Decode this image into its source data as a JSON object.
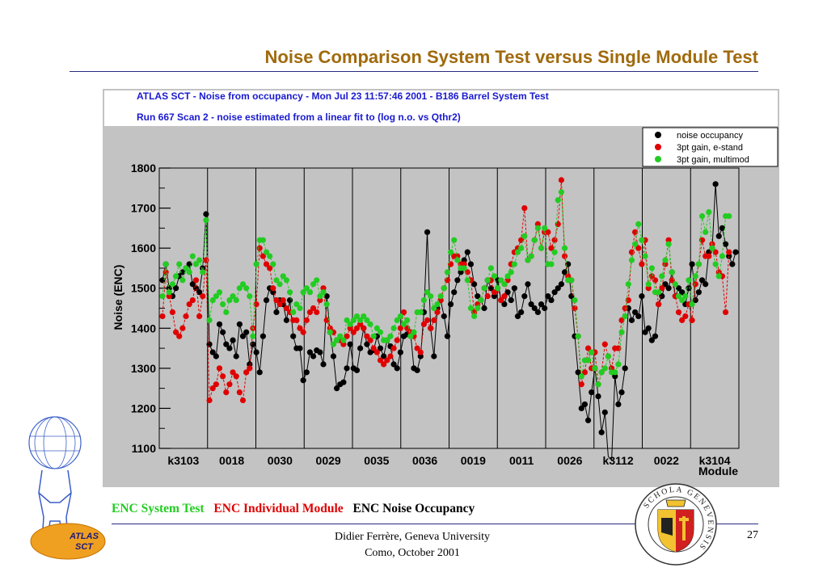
{
  "slide": {
    "title": "Noise Comparison System Test versus Single Module Test",
    "legend": {
      "system": "ENC System Test",
      "individual": "ENC Individual Module",
      "occupancy": "ENC Noise Occupancy"
    },
    "footer": {
      "line1": "Didier Ferrère, Geneva University",
      "line2": "Como, October 2001",
      "page": "27"
    },
    "logo_text": [
      "ATLAS",
      "SCT"
    ],
    "seal_text": "SCHOLA GENEVENSIS"
  },
  "colors": {
    "title": "#a06a0c",
    "system": "#22cc22",
    "individual": "#e00000",
    "occupancy": "#000000",
    "plot_bg": "#c3c3c3",
    "header_text": "#1a1ad0"
  },
  "chart_data": {
    "type": "scatter",
    "header_line1": "ATLAS SCT - Noise from occupancy  -  Mon Jul 23 11:57:46 2001  -  B186 Barrel System Test",
    "header_line2": "Run 667   Scan 2  -  noise estimated from a linear fit to (log n.o. vs Qthr2)",
    "ylabel": "Noise (ENC)",
    "xlabel": "Module",
    "ylim": [
      1100,
      1800
    ],
    "yticks": [
      "1100",
      "1200",
      "1300",
      "1400",
      "1500",
      "1600",
      "1700",
      "1800"
    ],
    "modules": [
      "k3103",
      "0018",
      "0030",
      "0029",
      "0035",
      "0036",
      "0019",
      "0011",
      "0026",
      "k3112",
      "0022",
      "k3104"
    ],
    "legend_position": "top-right",
    "series": [
      {
        "name": "noise occupancy",
        "color": "#000000",
        "values": [
          1520,
          1560,
          1500,
          1480,
          1500,
          1530,
          1540,
          1550,
          1560,
          1510,
          1500,
          1490,
          1550,
          1685,
          1360,
          1340,
          1330,
          1410,
          1390,
          1360,
          1350,
          1370,
          1330,
          1410,
          1380,
          1390,
          1310,
          1360,
          1340,
          1290,
          1380,
          1470,
          1500,
          1490,
          1440,
          1470,
          1460,
          1420,
          1470,
          1380,
          1350,
          1350,
          1270,
          1290,
          1340,
          1330,
          1345,
          1340,
          1310,
          1480,
          1390,
          1330,
          1250,
          1260,
          1265,
          1300,
          1360,
          1300,
          1295,
          1350,
          1400,
          1360,
          1340,
          1345,
          1380,
          1350,
          1330,
          1370,
          1355,
          1310,
          1300,
          1340,
          1380,
          1385,
          1390,
          1300,
          1295,
          1330,
          1440,
          1640,
          1400,
          1330,
          1450,
          1470,
          1430,
          1380,
          1460,
          1490,
          1520,
          1540,
          1570,
          1590,
          1560,
          1510,
          1480,
          1470,
          1450,
          1520,
          1500,
          1480,
          1520,
          1470,
          1460,
          1490,
          1470,
          1500,
          1430,
          1440,
          1480,
          1510,
          1460,
          1450,
          1440,
          1460,
          1450,
          1480,
          1470,
          1490,
          1500,
          1510,
          1540,
          1560,
          1480,
          1380,
          1290,
          1200,
          1210,
          1170,
          1240,
          1300,
          1230,
          1140,
          1190,
          1080,
          1070,
          1280,
          1210,
          1240,
          1300,
          1450,
          1420,
          1440,
          1430,
          1480,
          1390,
          1400,
          1370,
          1380,
          1460,
          1480,
          1510,
          1500,
          1540,
          1480,
          1500,
          1490,
          1460,
          1500,
          1560,
          1470,
          1490,
          1520,
          1510,
          1590,
          1600,
          1760,
          1630,
          1650,
          1610,
          1580,
          1560,
          1590
        ]
      },
      {
        "name": "3pt gain, e-stand",
        "color": "#e00000",
        "values": [
          1430,
          1540,
          1480,
          1440,
          1390,
          1380,
          1400,
          1430,
          1460,
          1470,
          1520,
          1430,
          1480,
          1570,
          1220,
          1250,
          1260,
          1300,
          1280,
          1240,
          1260,
          1290,
          1280,
          1240,
          1220,
          1290,
          1300,
          1400,
          1460,
          1600,
          1580,
          1560,
          1550,
          1500,
          1470,
          1460,
          1470,
          1450,
          1440,
          1420,
          1420,
          1400,
          1390,
          1420,
          1440,
          1450,
          1440,
          1470,
          1500,
          1420,
          1400,
          1390,
          1370,
          1370,
          1360,
          1380,
          1400,
          1390,
          1400,
          1410,
          1400,
          1380,
          1370,
          1350,
          1340,
          1320,
          1310,
          1320,
          1330,
          1350,
          1370,
          1400,
          1440,
          1400,
          1390,
          1380,
          1350,
          1340,
          1410,
          1420,
          1400,
          1420,
          1440,
          1470,
          1500,
          1520,
          1560,
          1580,
          1580,
          1560,
          1560,
          1540,
          1520,
          1440,
          1460,
          1470,
          1500,
          1480,
          1520,
          1490,
          1500,
          1470,
          1480,
          1520,
          1560,
          1590,
          1600,
          1620,
          1700,
          1570,
          1580,
          1620,
          1660,
          1600,
          1640,
          1640,
          1600,
          1620,
          1660,
          1770,
          1580,
          1530,
          1520,
          1450,
          1380,
          1260,
          1290,
          1350,
          1300,
          1340,
          1260,
          1290,
          1360,
          1330,
          1300,
          1350,
          1350,
          1420,
          1450,
          1470,
          1590,
          1640,
          1600,
          1560,
          1620,
          1500,
          1530,
          1520,
          1460,
          1500,
          1560,
          1620,
          1520,
          1480,
          1440,
          1420,
          1430,
          1460,
          1420,
          1510,
          1560,
          1620,
          1580,
          1580,
          1610,
          1590,
          1540,
          1530,
          1440,
          1590
        ]
      },
      {
        "name": "3pt gain, multimod",
        "color": "#22cc22",
        "values": [
          1480,
          1560,
          1490,
          1510,
          1530,
          1560,
          1520,
          1550,
          1540,
          1580,
          1560,
          1570,
          1540,
          1670,
          1420,
          1470,
          1480,
          1490,
          1460,
          1440,
          1470,
          1480,
          1470,
          1500,
          1510,
          1500,
          1480,
          1380,
          1560,
          1620,
          1620,
          1590,
          1580,
          1560,
          1520,
          1510,
          1530,
          1520,
          1490,
          1440,
          1460,
          1450,
          1490,
          1500,
          1490,
          1510,
          1520,
          1480,
          1490,
          1460,
          1390,
          1360,
          1370,
          1380,
          1370,
          1420,
          1410,
          1420,
          1430,
          1420,
          1430,
          1420,
          1410,
          1380,
          1400,
          1390,
          1370,
          1370,
          1380,
          1400,
          1420,
          1430,
          1410,
          1420,
          1380,
          1390,
          1440,
          1440,
          1470,
          1490,
          1480,
          1450,
          1460,
          1480,
          1500,
          1540,
          1590,
          1620,
          1570,
          1550,
          1550,
          1520,
          1450,
          1430,
          1450,
          1470,
          1500,
          1520,
          1550,
          1530,
          1500,
          1520,
          1510,
          1530,
          1540,
          1560,
          1590,
          1600,
          1630,
          1570,
          1580,
          1620,
          1650,
          1600,
          1650,
          1560,
          1560,
          1590,
          1720,
          1740,
          1600,
          1520,
          1520,
          1470,
          1380,
          1280,
          1320,
          1320,
          1340,
          1300,
          1260,
          1290,
          1300,
          1330,
          1290,
          1290,
          1310,
          1390,
          1430,
          1510,
          1570,
          1610,
          1660,
          1620,
          1580,
          1510,
          1550,
          1490,
          1490,
          1530,
          1570,
          1610,
          1540,
          1510,
          1480,
          1470,
          1480,
          1520,
          1460,
          1530,
          1560,
          1680,
          1640,
          1690,
          1600,
          1560,
          1530,
          1580,
          1680,
          1680
        ]
      }
    ]
  }
}
